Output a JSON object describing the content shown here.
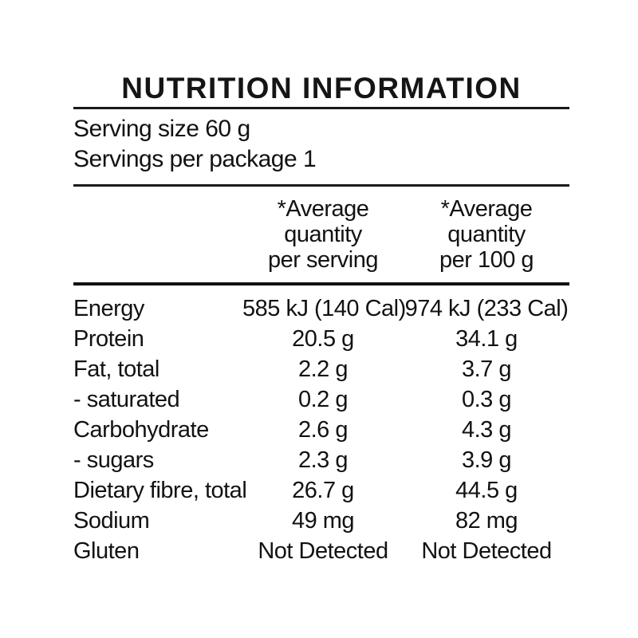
{
  "title": "NUTRITION INFORMATION",
  "serving_info": {
    "serving_size": "Serving size 60 g",
    "servings_per_package": "Servings per package 1"
  },
  "columns": {
    "per_serving": [
      "*Average",
      "quantity",
      "per serving"
    ],
    "per_100g": [
      "*Average",
      "quantity",
      "per 100 g"
    ]
  },
  "rows": [
    {
      "label": "Energy",
      "per_serving": "585 kJ (140 Cal)",
      "per_100g": "974 kJ (233 Cal)"
    },
    {
      "label": "Protein",
      "per_serving": "20.5 g",
      "per_100g": "34.1 g"
    },
    {
      "label": "Fat, total",
      "per_serving": "2.2 g",
      "per_100g": "3.7 g"
    },
    {
      "label": "- saturated",
      "per_serving": "0.2 g",
      "per_100g": "0.3 g"
    },
    {
      "label": "Carbohydrate",
      "per_serving": "2.6 g",
      "per_100g": "4.3 g"
    },
    {
      "label": "- sugars",
      "per_serving": "2.3 g",
      "per_100g": "3.9 g"
    },
    {
      "label": "Dietary fibre, total",
      "per_serving": "26.7 g",
      "per_100g": "44.5 g"
    },
    {
      "label": "Sodium",
      "per_serving": "49 mg",
      "per_100g": "82 mg"
    },
    {
      "label": "Gluten",
      "per_serving": "Not Detected",
      "per_100g": "Not Detected"
    }
  ],
  "colors": {
    "text": "#121212",
    "rule": "#1a1a1a",
    "background": "#ffffff"
  }
}
